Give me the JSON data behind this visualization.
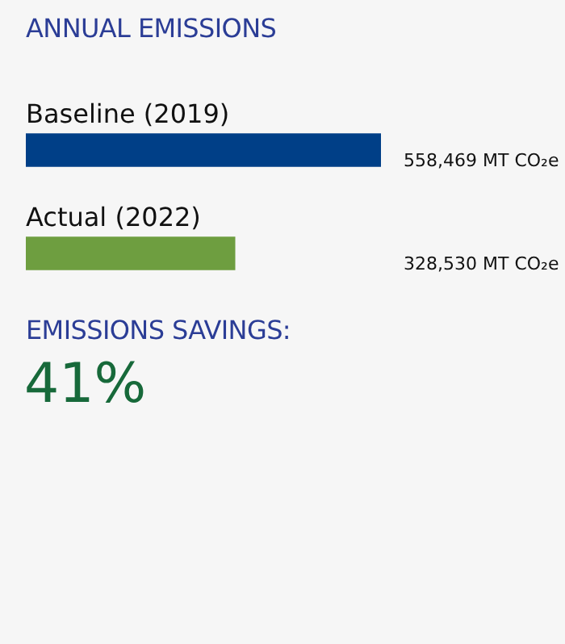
{
  "chart_data": {
    "type": "bar",
    "title": "ANNUAL EMISSIONS",
    "orientation": "horizontal",
    "categories": [
      "Baseline (2019)",
      "Actual (2022)"
    ],
    "values": [
      558469,
      328530
    ],
    "colors": [
      "#003f87",
      "#6e9e40"
    ],
    "value_labels": [
      "558,469 MT CO₂e",
      "328,530 MT CO₂e"
    ],
    "xlim": [
      0,
      558469
    ],
    "annotations": [
      "EMISSIONS SAVINGS:",
      "41%"
    ]
  }
}
